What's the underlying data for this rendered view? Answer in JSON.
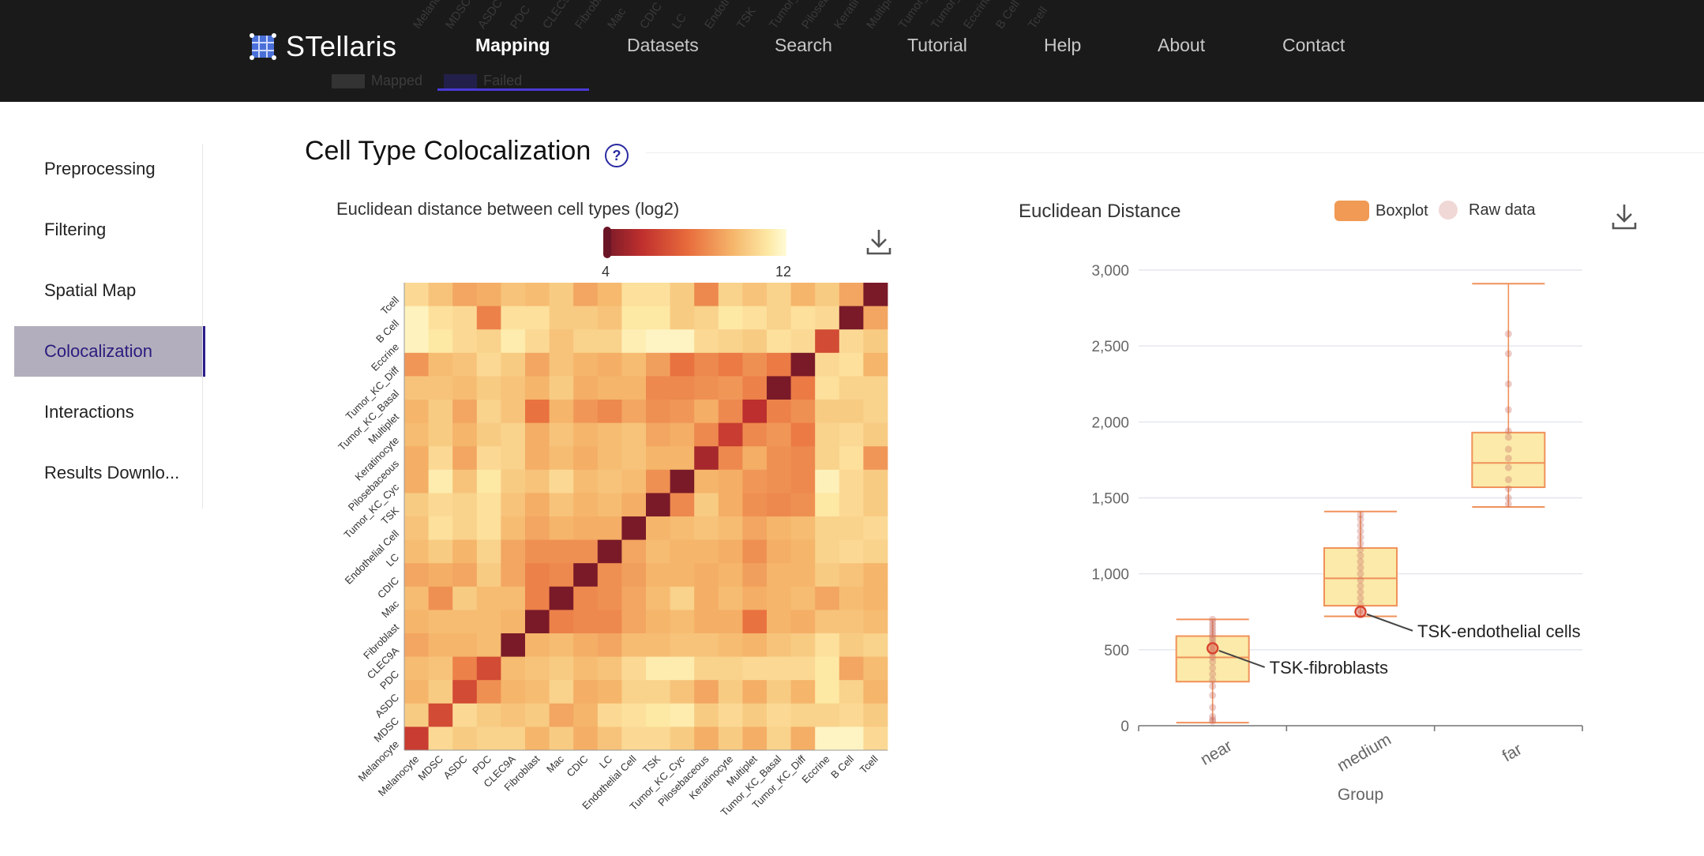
{
  "app": {
    "title": "STellaris",
    "nav": [
      "Mapping",
      "Datasets",
      "Search",
      "Tutorial",
      "Help",
      "About",
      "Contact"
    ],
    "active_nav": "Mapping",
    "ghost_legend": [
      "Mapped",
      "Failed"
    ]
  },
  "sidebar": {
    "items": [
      {
        "label": "Preprocessing"
      },
      {
        "label": "Filtering"
      },
      {
        "label": "Spatial Map"
      },
      {
        "label": "Colocalization"
      },
      {
        "label": "Interactions"
      },
      {
        "label": "Results Downlo..."
      }
    ],
    "active": "Colocalization"
  },
  "section": {
    "title": "Cell Type Colocalization",
    "help": "?"
  },
  "heatmap": {
    "title": "Euclidean distance between cell types (log2)",
    "scale_min": "4",
    "scale_max": "12"
  },
  "boxplot": {
    "title": "Euclidean Distance",
    "legend_boxplot": "Boxplot",
    "legend_raw": "Raw data"
  },
  "chart_data": [
    {
      "type": "heatmap",
      "title": "Euclidean distance between cell types (log2)",
      "colorbar": {
        "min": 4,
        "max": 12
      },
      "x_labels": [
        "Melanocyte",
        "MDSC",
        "ASDC",
        "PDC",
        "CLEC9A",
        "Fibroblast",
        "Mac",
        "CDIC",
        "LC",
        "Endothelial Cell",
        "TSK",
        "Tumor_KC_Cyc",
        "Pilosebaceous",
        "Keratinocyte",
        "Multiplet",
        "Tumor_KC_Basal",
        "Tumor_KC_Diff",
        "Eccrine",
        "B Cell",
        "Tcell"
      ],
      "y_labels_top_to_bottom": [
        "Tcell",
        "B Cell",
        "Eccrine",
        "Tumor_KC_Diff",
        "Tumor_KC_Basal",
        "Multiplet",
        "Keratinocyte",
        "Pilosebaceous",
        "Tumor_KC_Cyc",
        "TSK",
        "Endothelial Cell",
        "LC",
        "CDIC",
        "Mac",
        "Fibroblast",
        "CLEC9A",
        "PDC",
        "ASDC",
        "MDSC",
        "Melanocyte"
      ],
      "values": [
        [
          10.6,
          10.0,
          9.2,
          9.4,
          10.0,
          9.8,
          10.2,
          9.2,
          9.7,
          10.8,
          10.8,
          10.2,
          8.4,
          10.4,
          10.0,
          10.4,
          9.6,
          10.2,
          9.2,
          4.0
        ],
        [
          11.5,
          10.8,
          10.6,
          8.2,
          10.8,
          10.8,
          10.2,
          10.2,
          10.0,
          11.0,
          11.0,
          10.2,
          10.4,
          11.0,
          10.8,
          10.4,
          10.8,
          10.6,
          4.0,
          9.2
        ],
        [
          11.5,
          11.0,
          10.6,
          10.4,
          11.2,
          10.6,
          10.0,
          10.4,
          10.4,
          11.3,
          11.6,
          11.6,
          10.6,
          10.4,
          10.2,
          10.8,
          10.6,
          6.5,
          10.6,
          10.2
        ],
        [
          8.8,
          9.8,
          10.0,
          10.6,
          10.2,
          9.2,
          10.0,
          9.6,
          9.4,
          9.8,
          9.0,
          7.8,
          8.4,
          8.0,
          8.6,
          8.0,
          4.0,
          10.6,
          10.8,
          9.6
        ],
        [
          10.0,
          10.0,
          9.8,
          10.2,
          10.0,
          9.6,
          10.2,
          9.4,
          9.6,
          9.6,
          8.4,
          8.4,
          8.6,
          8.8,
          8.2,
          4.0,
          8.0,
          10.8,
          10.4,
          10.4
        ],
        [
          9.6,
          10.2,
          9.2,
          10.4,
          10.0,
          7.8,
          9.6,
          8.8,
          8.4,
          9.2,
          8.6,
          8.8,
          9.4,
          8.4,
          5.5,
          8.2,
          8.6,
          10.2,
          10.2,
          10.4
        ],
        [
          9.8,
          10.2,
          9.6,
          10.2,
          10.4,
          9.4,
          10.0,
          9.6,
          9.8,
          10.0,
          9.2,
          9.4,
          8.4,
          6.0,
          8.4,
          8.8,
          8.0,
          10.4,
          10.6,
          10.2
        ],
        [
          9.4,
          10.6,
          9.2,
          10.6,
          10.4,
          9.4,
          9.8,
          9.4,
          9.8,
          10.0,
          9.6,
          9.6,
          5.0,
          8.4,
          9.4,
          8.6,
          8.4,
          10.4,
          10.8,
          8.8
        ],
        [
          9.4,
          11.2,
          10.0,
          11.0,
          10.2,
          10.0,
          10.6,
          9.8,
          10.0,
          9.8,
          8.6,
          4.0,
          9.6,
          9.4,
          8.8,
          8.6,
          8.4,
          11.4,
          10.6,
          10.2
        ],
        [
          10.2,
          10.6,
          10.4,
          10.8,
          10.0,
          9.4,
          10.0,
          9.6,
          9.8,
          9.4,
          4.0,
          8.4,
          10.2,
          9.4,
          8.6,
          8.4,
          8.6,
          11.0,
          10.6,
          10.2
        ],
        [
          10.0,
          10.8,
          10.4,
          10.8,
          9.8,
          9.2,
          9.6,
          9.4,
          9.4,
          4.0,
          9.6,
          9.8,
          10.0,
          9.8,
          9.2,
          9.6,
          9.8,
          10.4,
          10.4,
          10.6
        ],
        [
          9.8,
          10.2,
          9.6,
          10.4,
          9.2,
          8.6,
          8.6,
          8.6,
          4.0,
          9.2,
          9.8,
          9.6,
          9.6,
          9.4,
          8.6,
          9.4,
          9.6,
          10.4,
          10.6,
          10.4
        ],
        [
          9.2,
          9.4,
          9.2,
          10.2,
          9.2,
          8.2,
          8.4,
          4.0,
          8.6,
          9.0,
          9.6,
          9.6,
          9.4,
          9.6,
          9.0,
          9.6,
          9.6,
          10.2,
          10.0,
          9.6
        ],
        [
          9.8,
          8.6,
          10.2,
          9.8,
          9.8,
          8.2,
          4.0,
          8.4,
          8.6,
          9.2,
          9.8,
          10.4,
          9.4,
          9.8,
          9.4,
          9.6,
          9.8,
          9.2,
          9.8,
          9.6
        ],
        [
          9.6,
          9.8,
          9.8,
          9.8,
          9.6,
          4.0,
          8.2,
          8.4,
          8.4,
          9.2,
          9.6,
          9.8,
          9.4,
          9.4,
          7.8,
          9.6,
          9.4,
          10.0,
          10.0,
          9.8
        ],
        [
          9.2,
          9.6,
          9.6,
          9.8,
          4.0,
          9.6,
          9.8,
          9.4,
          9.2,
          9.8,
          9.8,
          10.0,
          10.0,
          9.8,
          9.6,
          10.0,
          10.2,
          10.8,
          10.2,
          10.4
        ],
        [
          9.8,
          10.0,
          8.2,
          6.5,
          9.8,
          10.0,
          10.2,
          9.8,
          10.0,
          10.6,
          11.2,
          11.2,
          10.4,
          10.4,
          10.6,
          10.6,
          10.6,
          11.0,
          9.2,
          9.8
        ],
        [
          9.6,
          10.2,
          6.5,
          8.6,
          9.6,
          9.8,
          10.4,
          9.4,
          9.6,
          10.4,
          10.4,
          10.0,
          9.2,
          10.2,
          9.4,
          10.2,
          9.6,
          11.0,
          10.4,
          9.6
        ],
        [
          10.2,
          6.5,
          10.6,
          10.2,
          10.0,
          10.2,
          9.2,
          9.6,
          10.6,
          10.8,
          11.0,
          11.2,
          10.2,
          10.6,
          10.2,
          10.6,
          10.4,
          10.4,
          10.6,
          10.2
        ],
        [
          6.0,
          10.6,
          10.2,
          10.4,
          10.4,
          9.6,
          10.2,
          9.4,
          10.0,
          10.6,
          10.6,
          10.2,
          9.4,
          10.2,
          9.4,
          10.4,
          9.4,
          11.6,
          11.6,
          10.6
        ]
      ]
    },
    {
      "type": "boxplot",
      "title": "Euclidean Distance",
      "xlabel": "Group",
      "ylabel": "",
      "ylim": [
        0,
        3000
      ],
      "yticks": [
        0,
        500,
        1000,
        1500,
        2000,
        2500,
        3000
      ],
      "categories": [
        "near",
        "medium",
        "far"
      ],
      "boxes": [
        {
          "category": "near",
          "min": 20,
          "q1": 290,
          "median": 450,
          "q3": 590,
          "max": 700
        },
        {
          "category": "medium",
          "min": 720,
          "q1": 790,
          "median": 970,
          "q3": 1170,
          "max": 1410
        },
        {
          "category": "far",
          "min": 1440,
          "q1": 1570,
          "median": 1730,
          "q3": 1930,
          "max": 2910
        }
      ],
      "raw_data": {
        "near": [
          30,
          40,
          60,
          120,
          200,
          260,
          300,
          340,
          380,
          420,
          450,
          480,
          500,
          520,
          540,
          560,
          580,
          600,
          620,
          640,
          660,
          680,
          700
        ],
        "medium": [
          740,
          760,
          800,
          840,
          880,
          920,
          960,
          1000,
          1040,
          1080,
          1120,
          1160,
          1200,
          1240,
          1280,
          1320,
          1360,
          1390
        ],
        "far": [
          1460,
          1500,
          1560,
          1620,
          1700,
          1760,
          1820,
          1900,
          1940,
          2080,
          2250,
          2450,
          2580
        ]
      },
      "annotations": [
        {
          "label": "TSK-fibroblasts",
          "category": "near",
          "y": 510
        },
        {
          "label": "TSK-endothelial cells",
          "category": "medium",
          "y": 750
        }
      ]
    }
  ]
}
